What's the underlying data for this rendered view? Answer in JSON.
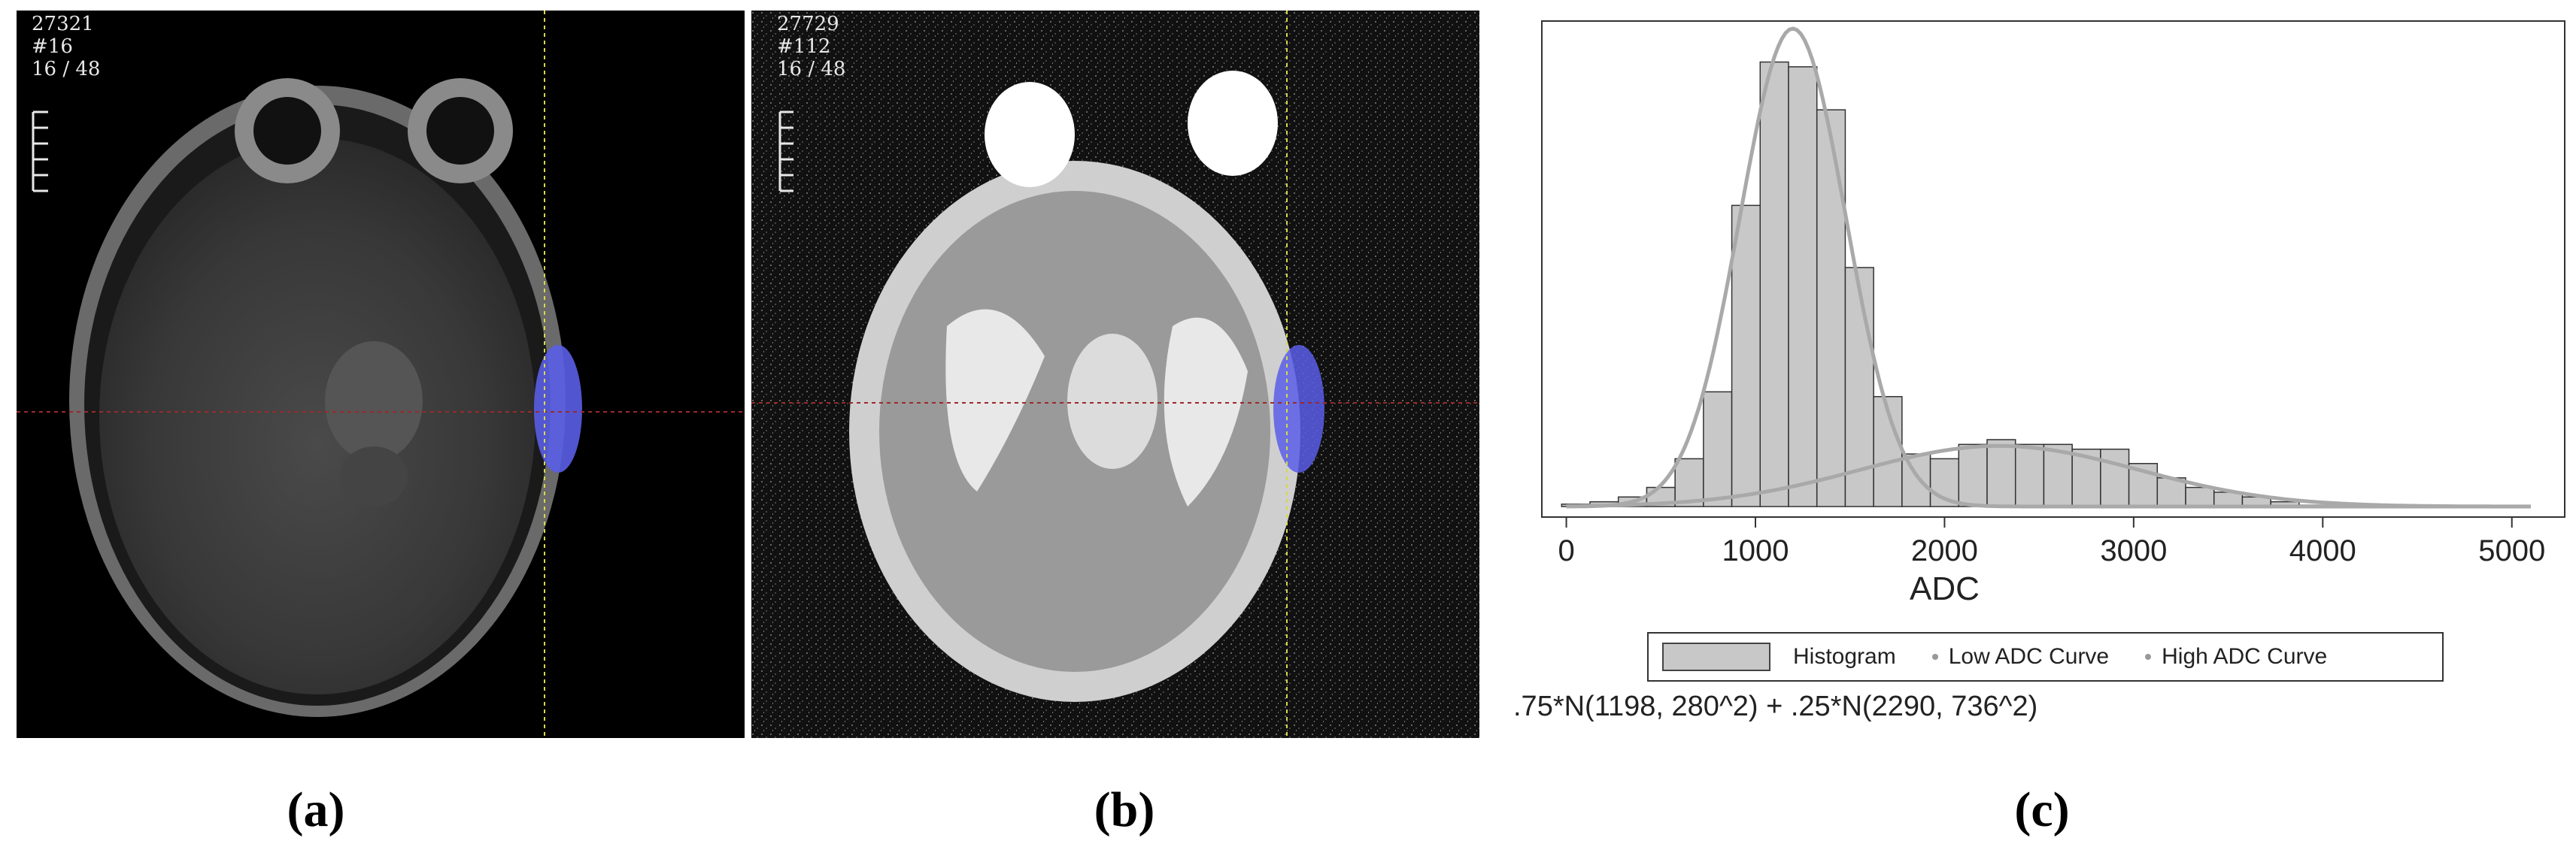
{
  "panel_a": {
    "line1": "27321",
    "line2": "#16",
    "line3": "16 / 48",
    "caption": "(a)"
  },
  "panel_b": {
    "line1": "27729",
    "line2": "#112",
    "line3": "16 / 48",
    "caption": "(b)"
  },
  "panel_c": {
    "caption": "(c)",
    "formula": ".75*N(1198, 280^2) + .25*N(2290, 736^2)"
  },
  "colors": {
    "roi": "#5a5ee6",
    "crosshair_yellow": "#d8d84a",
    "crosshair_red": "#9a2a2a",
    "bar_fill": "#c8c8c8",
    "curve": "#a9a9a9"
  },
  "chart_data": {
    "type": "bar",
    "xlabel": "ADC",
    "ylabel": "",
    "xlim": [
      -50,
      5200
    ],
    "ylim": [
      0,
      1.0
    ],
    "x_ticks": [
      "0",
      "1000",
      "2000",
      "3000",
      "4000",
      "5000"
    ],
    "x_tick_values": [
      0,
      1000,
      2000,
      3000,
      4000,
      5000
    ],
    "bin_width": 150,
    "bins": [
      {
        "x": 50,
        "y": 0.005
      },
      {
        "x": 200,
        "y": 0.01
      },
      {
        "x": 350,
        "y": 0.02
      },
      {
        "x": 500,
        "y": 0.04
      },
      {
        "x": 650,
        "y": 0.1
      },
      {
        "x": 800,
        "y": 0.24
      },
      {
        "x": 950,
        "y": 0.63
      },
      {
        "x": 1100,
        "y": 0.93
      },
      {
        "x": 1250,
        "y": 0.92
      },
      {
        "x": 1400,
        "y": 0.83
      },
      {
        "x": 1550,
        "y": 0.5
      },
      {
        "x": 1700,
        "y": 0.23
      },
      {
        "x": 1850,
        "y": 0.11
      },
      {
        "x": 2000,
        "y": 0.1
      },
      {
        "x": 2150,
        "y": 0.13
      },
      {
        "x": 2300,
        "y": 0.14
      },
      {
        "x": 2450,
        "y": 0.13
      },
      {
        "x": 2600,
        "y": 0.13
      },
      {
        "x": 2750,
        "y": 0.12
      },
      {
        "x": 2900,
        "y": 0.12
      },
      {
        "x": 3050,
        "y": 0.09
      },
      {
        "x": 3200,
        "y": 0.06
      },
      {
        "x": 3350,
        "y": 0.04
      },
      {
        "x": 3500,
        "y": 0.03
      },
      {
        "x": 3650,
        "y": 0.02
      },
      {
        "x": 3800,
        "y": 0.01
      },
      {
        "x": 3950,
        "y": 0.003
      },
      {
        "x": 4100,
        "y": 0.003
      },
      {
        "x": 4250,
        "y": 0.002
      },
      {
        "x": 4400,
        "y": 0.002
      },
      {
        "x": 4550,
        "y": 0.002
      },
      {
        "x": 4700,
        "y": 0.002
      },
      {
        "x": 4850,
        "y": 0.002
      },
      {
        "x": 5000,
        "y": 0.002
      }
    ],
    "series": [
      {
        "name": "Histogram",
        "kind": "bar"
      },
      {
        "name": "Low ADC Curve",
        "kind": "line",
        "mean": 1198,
        "sd": 280,
        "weight": 0.75
      },
      {
        "name": "High ADC Curve",
        "kind": "line",
        "mean": 2290,
        "sd": 736,
        "weight": 0.25
      }
    ],
    "legend_position": "bottom",
    "grid": false
  }
}
